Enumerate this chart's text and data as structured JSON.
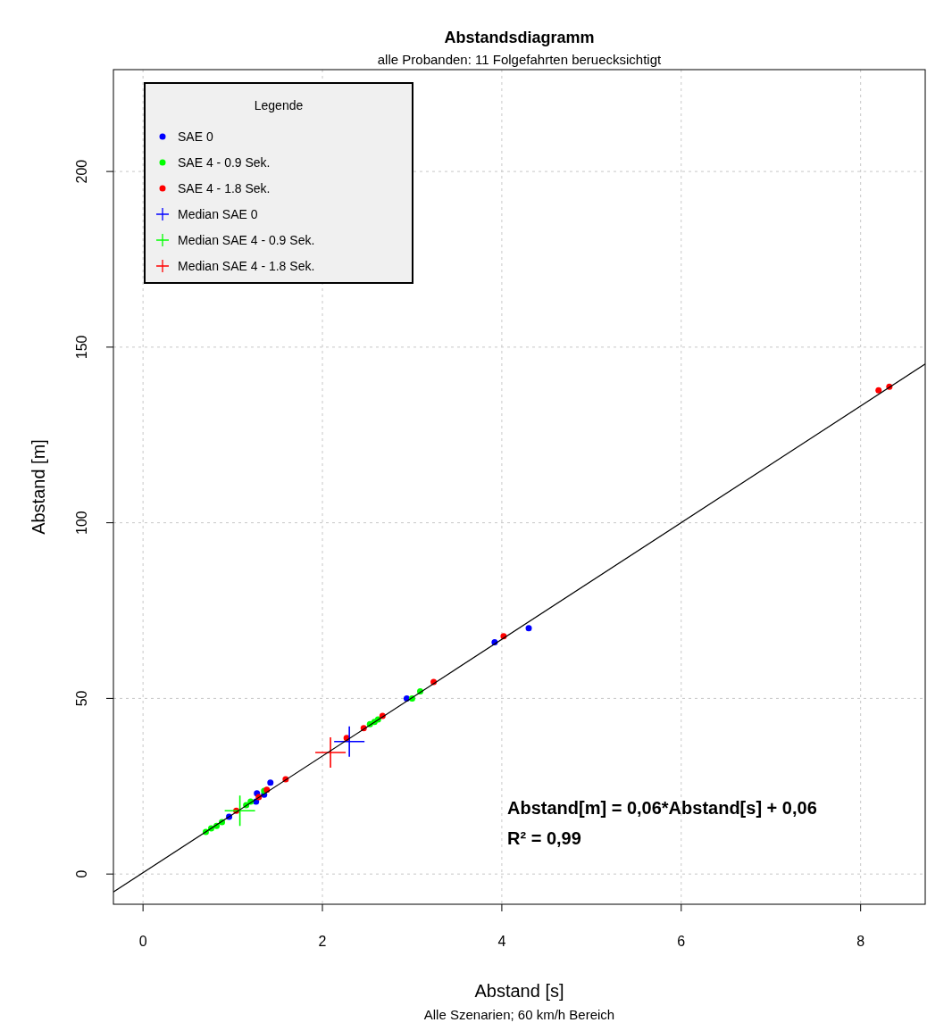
{
  "chart_data": {
    "type": "scatter",
    "title": "Abstandsdiagramm",
    "subtitle": "alle Probanden: 11 Folgefahrten beruecksichtigt",
    "xlabel": "Abstand [s]",
    "ylabel": "Abstand [m]",
    "legend_title": "Legende",
    "annotations": [
      "Abstand[m] = 0,06*Abstand[s] + 0,06",
      "R² = 0,99",
      "Alle Szenarien; 60 km/h Bereich"
    ],
    "xlim": [
      -0.33,
      8.72
    ],
    "ylim": [
      -8.6,
      229
    ],
    "xticks": [
      0,
      2,
      4,
      6,
      8
    ],
    "yticks": [
      0,
      50,
      100,
      150,
      200
    ],
    "grid": true,
    "legend": "top left",
    "series": [
      {
        "name": "SAE 0",
        "color": "#0000ff",
        "marker": "circle",
        "x": [
          0.96,
          1.26,
          1.27,
          1.35,
          1.42,
          2.94,
          3.92,
          4.3
        ],
        "values": [
          16.3,
          20.6,
          23,
          22.6,
          26,
          50,
          66,
          70
        ]
      },
      {
        "name": "SAE 4 - 0.9 Sek.",
        "color": "#00ff00",
        "marker": "circle",
        "x": [
          0.7,
          0.76,
          0.82,
          0.88,
          1.15,
          1.2,
          1.35,
          2.53,
          2.58,
          2.62,
          3.0,
          3.09
        ],
        "values": [
          12,
          13,
          13.7,
          14.8,
          19.6,
          20.6,
          23.7,
          42.7,
          43.3,
          44,
          50,
          52
        ]
      },
      {
        "name": "SAE 4 - 1.8 Sek.",
        "color": "#ff0000",
        "marker": "circle",
        "x": [
          1.04,
          1.29,
          1.38,
          1.59,
          2.27,
          2.46,
          2.67,
          3.24,
          4.02,
          8.2,
          8.32
        ],
        "values": [
          18,
          21.9,
          24,
          27,
          38.7,
          41.5,
          45,
          54.7,
          67.7,
          137.7,
          138.7
        ]
      },
      {
        "name": "Median SAE 0",
        "color": "#0000ff",
        "marker": "cross",
        "x": [
          2.3
        ],
        "values": [
          37.7
        ]
      },
      {
        "name": "Median SAE 4 - 0.9 Sek.",
        "color": "#00ff00",
        "marker": "cross",
        "x": [
          1.08
        ],
        "values": [
          18
        ]
      },
      {
        "name": "Median SAE 4 - 1.8 Sek.",
        "color": "#ff0000",
        "marker": "cross",
        "x": [
          2.09
        ],
        "values": [
          34.6
        ]
      },
      {
        "type": "line",
        "color": "#000000",
        "marker": "none",
        "line_style": "solid",
        "x": [
          -0.33,
          8.72
        ],
        "values": [
          -5.1,
          145.2
        ]
      }
    ]
  }
}
